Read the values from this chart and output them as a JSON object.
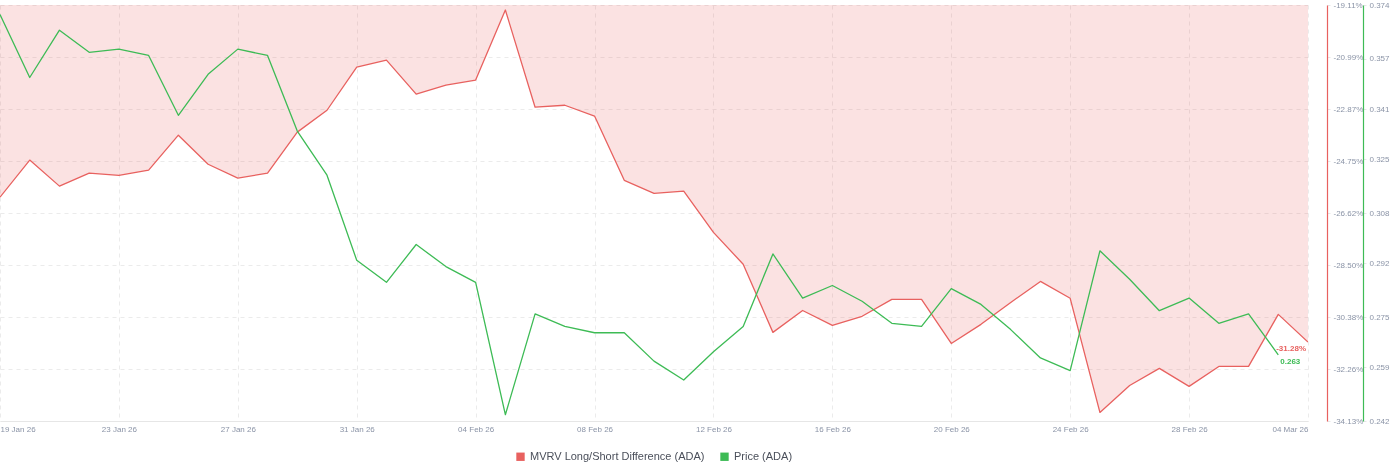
{
  "chart_data": {
    "type": "line",
    "x": [
      "--01-19",
      "--01-20",
      "--01-21",
      "--01-22",
      "--01-23",
      "--01-24",
      "--01-25",
      "--01-26",
      "--01-27",
      "--01-28",
      "--01-29",
      "--01-30",
      "--01-31",
      "--02-01",
      "--02-02",
      "--02-03",
      "--02-04",
      "--02-05",
      "--02-06",
      "--02-07",
      "--02-08",
      "--02-09",
      "--02-10",
      "--02-11",
      "--02-12",
      "--02-13",
      "--02-14",
      "--02-15",
      "--02-16",
      "--02-17",
      "--02-18",
      "--02-19",
      "--02-20",
      "--02-21",
      "--02-22",
      "--02-23",
      "--02-24",
      "--02-25",
      "--02-26",
      "--02-27",
      "--02-28",
      "--03-01",
      "--03-02",
      "--03-03",
      "--03-04"
    ],
    "xlim": [
      "--01-19",
      "--03-04"
    ],
    "xticks": [
      {
        "value": "--01-19",
        "label": "19 Jan 26"
      },
      {
        "value": "--01-23",
        "label": "23 Jan 26"
      },
      {
        "value": "--01-27",
        "label": "27 Jan 26"
      },
      {
        "value": "--01-31",
        "label": "31 Jan 26"
      },
      {
        "value": "--02-04",
        "label": "04 Feb 26"
      },
      {
        "value": "--02-08",
        "label": "08 Feb 26"
      },
      {
        "value": "--02-12",
        "label": "12 Feb 26"
      },
      {
        "value": "--02-16",
        "label": "16 Feb 26"
      },
      {
        "value": "--02-20",
        "label": "20 Feb 26"
      },
      {
        "value": "--02-24",
        "label": "24 Feb 26"
      },
      {
        "value": "--02-28",
        "label": "28 Feb 26"
      },
      {
        "value": "--03-04",
        "label": "04 Mar 26"
      }
    ],
    "ylim": [
      -34.13,
      -19.11
    ],
    "yticks": [
      {
        "value": -34.13,
        "label": "-34.13%"
      },
      {
        "value": -32.26,
        "label": "-32.26%"
      },
      {
        "value": -30.38,
        "label": "-30.38%"
      },
      {
        "value": -28.5,
        "label": "-28.50%"
      },
      {
        "value": -26.62,
        "label": "-26.62%"
      },
      {
        "value": -24.75,
        "label": "-24.75%"
      },
      {
        "value": -22.87,
        "label": "-22.87%"
      },
      {
        "value": -20.99,
        "label": "-20.99%"
      },
      {
        "value": -19.11,
        "label": "-19.11%"
      }
    ],
    "y2lim": [
      0.242,
      0.374
    ],
    "y2ticks": [
      0.242,
      0.259,
      0.275,
      0.292,
      0.308,
      0.325,
      0.341,
      0.357,
      0.374
    ],
    "grid": true,
    "legend": "bottom",
    "series": [
      {
        "name": "MVRV Long/Short Difference (ADA)",
        "type": "area",
        "color": "#e8615f",
        "values": [
          -26.05,
          -24.71,
          -25.65,
          -25.18,
          -25.26,
          -25.07,
          -23.81,
          -24.86,
          -25.36,
          -25.18,
          -23.7,
          -22.91,
          -21.35,
          -21.1,
          -22.33,
          -22.0,
          -21.82,
          -19.29,
          -22.8,
          -22.73,
          -23.12,
          -25.44,
          -25.91,
          -25.83,
          -27.32,
          -28.47,
          -30.93,
          -30.14,
          -30.68,
          -30.35,
          -29.74,
          -29.74,
          -31.33,
          -30.64,
          -29.85,
          -29.09,
          -29.7,
          -33.82,
          -32.85,
          -32.23,
          -32.88,
          -32.16,
          -32.16,
          -30.28,
          -31.28
        ],
        "value_labels": [
          null,
          null,
          null,
          null,
          null,
          null,
          null,
          null,
          null,
          null,
          null,
          null,
          null,
          null,
          null,
          null,
          null,
          null,
          null,
          null,
          null,
          null,
          null,
          null,
          null,
          null,
          null,
          null,
          null,
          null,
          null,
          null,
          null,
          null,
          null,
          null,
          null,
          null,
          null,
          null,
          null,
          null,
          null,
          null,
          "-31.28%"
        ]
      },
      {
        "name": "Price (ADA)",
        "type": "line",
        "axis": "y2",
        "color": "#3dbb55",
        "values": [
          0.371,
          0.351,
          0.366,
          0.359,
          0.36,
          0.358,
          0.339,
          0.352,
          0.36,
          0.358,
          0.334,
          0.32,
          0.293,
          0.286,
          0.298,
          0.291,
          0.286,
          0.244,
          0.276,
          0.272,
          0.27,
          0.27,
          0.261,
          0.255,
          0.264,
          0.272,
          0.295,
          0.281,
          0.285,
          0.28,
          0.273,
          0.272,
          0.284,
          0.279,
          0.271,
          0.262,
          0.258,
          0.296,
          0.287,
          0.277,
          0.281,
          0.273,
          0.276,
          0.263,
          null
        ],
        "value_labels": [
          null,
          null,
          null,
          null,
          null,
          null,
          null,
          null,
          null,
          null,
          null,
          null,
          null,
          null,
          null,
          null,
          null,
          null,
          null,
          null,
          null,
          null,
          null,
          null,
          null,
          null,
          null,
          null,
          null,
          null,
          null,
          null,
          null,
          null,
          null,
          null,
          null,
          null,
          null,
          null,
          null,
          null,
          null,
          "0.263",
          null
        ]
      }
    ]
  }
}
